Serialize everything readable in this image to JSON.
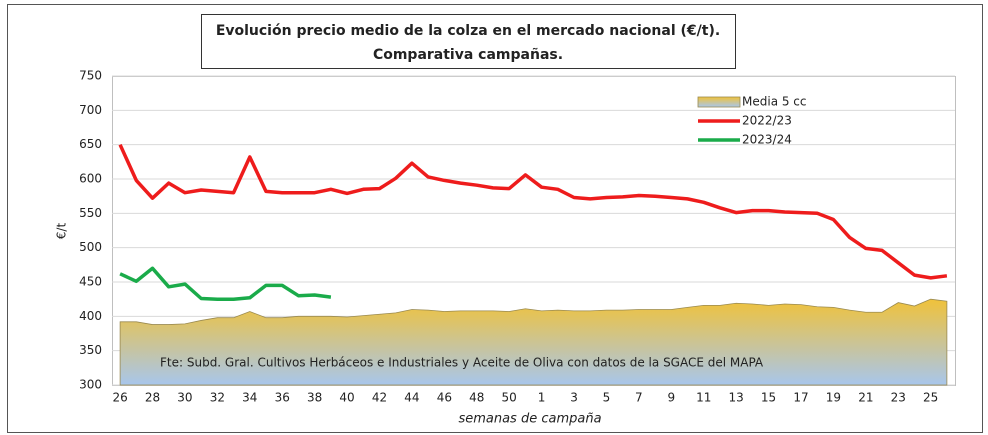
{
  "chart_data": {
    "type": "line",
    "title": [
      "Evolución precio medio de la colza en el mercado nacional (€/t).",
      "Comparativa campañas."
    ],
    "y_label": "€/t",
    "x_label": "semanas de campaña",
    "annotation": "Fte: Subd. Gral. Cultivos Herbáceos e Industriales y Aceite de Oliva con datos de la SGACE del MAPA",
    "categories": [
      "26",
      null,
      "28",
      null,
      "30",
      null,
      "32",
      null,
      "34",
      null,
      "36",
      null,
      "38",
      null,
      "40",
      null,
      "42",
      null,
      "44",
      null,
      "46",
      null,
      "48",
      null,
      "50",
      null,
      "1",
      null,
      "3",
      null,
      "5",
      null,
      "7",
      null,
      "9",
      null,
      "11",
      null,
      "13",
      null,
      "15",
      null,
      "17",
      null,
      "19",
      null,
      "21",
      null,
      "23",
      null,
      "25",
      null
    ],
    "ylim": [
      300,
      750
    ],
    "yticks": [
      300,
      350,
      400,
      450,
      500,
      550,
      600,
      650,
      700,
      750
    ],
    "grid": true,
    "legend": "upper right",
    "series": [
      {
        "name": "Media 5 cc",
        "kind": "area",
        "color": "#f0c23a",
        "values": [
          392,
          392,
          388,
          388,
          389,
          394,
          398,
          398,
          407,
          398,
          398,
          400,
          400,
          400,
          399,
          401,
          403,
          405,
          410,
          409,
          407,
          408,
          408,
          408,
          407,
          411,
          408,
          409,
          408,
          408,
          409,
          409,
          410,
          410,
          410,
          413,
          416,
          416,
          419,
          418,
          416,
          418,
          417,
          414,
          413,
          409,
          406,
          406,
          420,
          415,
          425,
          422
        ]
      },
      {
        "name": "2022/23",
        "kind": "line",
        "color": "#ee1c1c",
        "values": [
          650,
          598,
          572,
          594,
          580,
          584,
          582,
          580,
          632,
          582,
          580,
          580,
          580,
          585,
          579,
          585,
          586,
          601,
          623,
          603,
          598,
          594,
          591,
          587,
          586,
          606,
          588,
          585,
          573,
          571,
          573,
          574,
          576,
          575,
          573,
          571,
          566,
          558,
          551,
          554,
          554,
          552,
          551,
          550,
          541,
          515,
          499,
          496,
          478,
          460,
          456,
          459
        ]
      },
      {
        "name": "2023/24",
        "kind": "line",
        "color": "#1aab4a",
        "values": [
          462,
          451,
          470,
          443,
          447,
          426,
          425,
          425,
          427,
          445,
          445,
          430,
          431,
          428,
          null,
          null,
          null,
          null,
          null,
          null,
          null,
          null,
          null,
          null,
          null,
          null,
          null,
          null,
          null,
          null,
          null,
          null,
          null,
          null,
          null,
          null,
          null,
          null,
          null,
          null,
          null,
          null,
          null,
          null,
          null,
          null,
          null,
          null,
          null,
          null,
          null,
          null
        ]
      }
    ]
  }
}
